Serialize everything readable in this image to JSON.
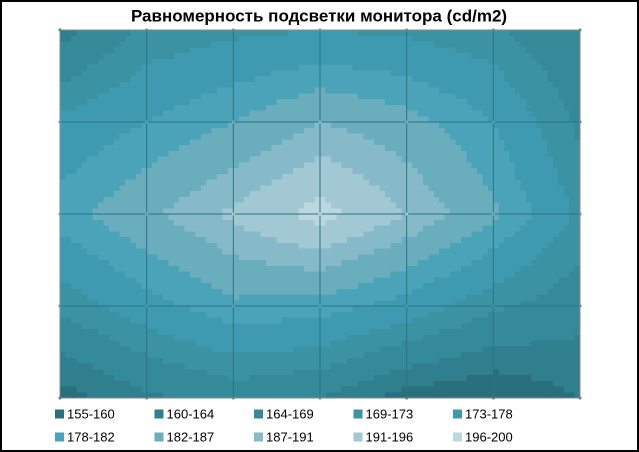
{
  "chart_data": {
    "type": "contour",
    "title": "Равномерность  подсветки монитора (cd/m2)",
    "grid": true,
    "z": [
      [
        162,
        170,
        172,
        173,
        172,
        170,
        164
      ],
      [
        174,
        178,
        182,
        187,
        184,
        178,
        168
      ],
      [
        180,
        186,
        192,
        198,
        191,
        183,
        172
      ],
      [
        170,
        176,
        181,
        180,
        176,
        170,
        166
      ],
      [
        158,
        163,
        166,
        164,
        158,
        156,
        160
      ]
    ],
    "legend": [
      {
        "label": "155-160",
        "min": 155,
        "max": 160,
        "color": "#2a6f7e"
      },
      {
        "label": "160-164",
        "min": 160,
        "max": 164,
        "color": "#2f7f8e"
      },
      {
        "label": "164-169",
        "min": 164,
        "max": 169,
        "color": "#358a99"
      },
      {
        "label": "169-173",
        "min": 169,
        "max": 173,
        "color": "#3a92a3"
      },
      {
        "label": "173-178",
        "min": 173,
        "max": 178,
        "color": "#3e9ab0"
      },
      {
        "label": "178-182",
        "min": 178,
        "max": 182,
        "color": "#4aa3b8"
      },
      {
        "label": "182-187",
        "min": 182,
        "max": 187,
        "color": "#6aaebe"
      },
      {
        "label": "187-191",
        "min": 187,
        "max": 191,
        "color": "#86bac8"
      },
      {
        "label": "191-196",
        "min": 191,
        "max": 196,
        "color": "#a1c8d3"
      },
      {
        "label": "196-200",
        "min": 196,
        "max": 200,
        "color": "#bcd8df"
      }
    ]
  }
}
